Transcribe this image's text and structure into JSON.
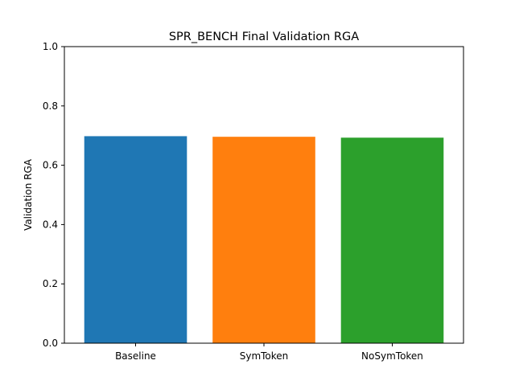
{
  "chart_data": {
    "type": "bar",
    "title": "SPR_BENCH Final Validation RGA",
    "xlabel": "",
    "ylabel": "Validation RGA",
    "ylim": [
      0,
      1.0
    ],
    "yticks": [
      "0.0",
      "0.2",
      "0.4",
      "0.6",
      "0.8",
      "1.0"
    ],
    "categories": [
      "Baseline",
      "SymToken",
      "NoSymToken"
    ],
    "values": [
      0.698,
      0.696,
      0.693
    ],
    "colors": [
      "#1f77b4",
      "#ff7f0e",
      "#2ca02c"
    ],
    "grid": false,
    "legend": "none"
  }
}
